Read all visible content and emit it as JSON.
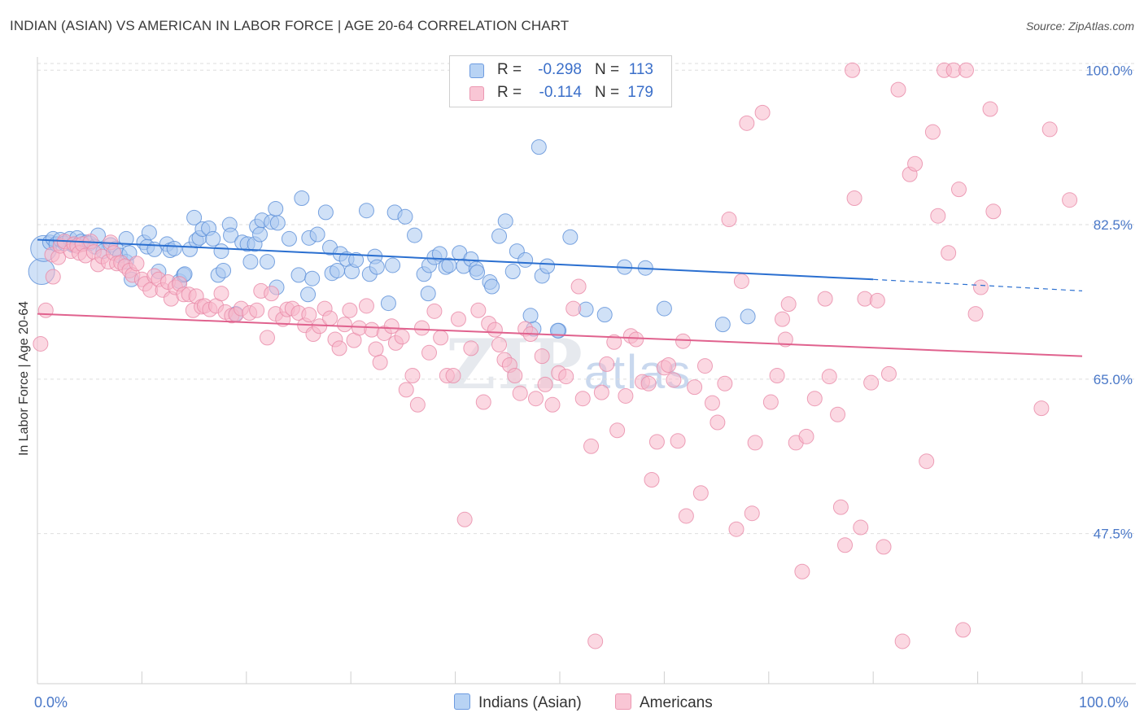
{
  "title": "INDIAN (ASIAN) VS AMERICAN IN LABOR FORCE | AGE 20-64 CORRELATION CHART",
  "source": "Source: ZipAtlas.com",
  "watermark": {
    "big": "ZIP",
    "small": "atlas"
  },
  "legend": {
    "rows": [
      {
        "r_label": "R =",
        "r_value": "-0.298",
        "n_label": "N =",
        "n_value": "113"
      },
      {
        "r_label": "R =",
        "r_value": "-0.114",
        "n_label": "N =",
        "n_value": "179"
      }
    ]
  },
  "bottom_legend": {
    "items": [
      "Indians (Asian)",
      "Americans"
    ]
  },
  "x_axis_labels": {
    "left": "0.0%",
    "right": "100.0%"
  },
  "colors": {
    "blue_fill": "#a9c8f0",
    "blue_stroke": "#5b8fd8",
    "blue_line": "#2a6fd0",
    "pink_fill": "#f7b8cb",
    "pink_stroke": "#e98aa8",
    "pink_line": "#e0628e",
    "grid": "#dedede",
    "tick_text": "#4a78c8"
  },
  "chart_data": {
    "type": "scatter",
    "xlabel": "",
    "ylabel": "In Labor Force | Age 20-64",
    "xlim": [
      0,
      100
    ],
    "ylim": [
      30.5,
      101.5
    ],
    "y_ticks": [
      47.5,
      65.0,
      82.5,
      100.0
    ],
    "y_tick_labels": [
      "47.5%",
      "65.0%",
      "82.5%",
      "100.0%"
    ],
    "grid": true,
    "legend_position": "top-center",
    "series": [
      {
        "name": "Indians (Asian)",
        "n": 113,
        "r": -0.298,
        "trend": {
          "x": [
            0,
            80
          ],
          "y": [
            80.8,
            76.3
          ],
          "dashed_to": [
            100,
            75.0
          ]
        },
        "points": [
          [
            0.4,
            77.2
          ],
          [
            0.6,
            79.8
          ],
          [
            1.2,
            80.5
          ],
          [
            1.5,
            80.9
          ],
          [
            1.8,
            80.3
          ],
          [
            2.2,
            80.8
          ],
          [
            2.6,
            80.4
          ],
          [
            3.1,
            80.9
          ],
          [
            3.4,
            80.2
          ],
          [
            3.8,
            81.0
          ],
          [
            4.2,
            80.6
          ],
          [
            4.7,
            80.5
          ],
          [
            5.0,
            80.4
          ],
          [
            5.5,
            80.0
          ],
          [
            5.8,
            81.3
          ],
          [
            6.3,
            79.5
          ],
          [
            7.0,
            80.2
          ],
          [
            7.5,
            79.8
          ],
          [
            7.9,
            79.0
          ],
          [
            8.5,
            78.3
          ],
          [
            8.5,
            80.9
          ],
          [
            8.8,
            79.3
          ],
          [
            10.2,
            80.5
          ],
          [
            10.5,
            80.0
          ],
          [
            10.7,
            81.6
          ],
          [
            11.2,
            79.7
          ],
          [
            11.6,
            77.2
          ],
          [
            12.4,
            80.3
          ],
          [
            12.7,
            79.6
          ],
          [
            13.1,
            79.8
          ],
          [
            13.6,
            76.1
          ],
          [
            14.0,
            76.8
          ],
          [
            14.6,
            79.7
          ],
          [
            15.0,
            83.3
          ],
          [
            15.2,
            80.7
          ],
          [
            15.5,
            81.0
          ],
          [
            15.8,
            82.0
          ],
          [
            16.4,
            82.1
          ],
          [
            16.8,
            80.9
          ],
          [
            17.3,
            76.8
          ],
          [
            17.6,
            79.5
          ],
          [
            17.8,
            77.3
          ],
          [
            18.4,
            82.5
          ],
          [
            18.5,
            81.3
          ],
          [
            19.0,
            72.4
          ],
          [
            19.6,
            80.5
          ],
          [
            20.1,
            80.3
          ],
          [
            20.4,
            78.3
          ],
          [
            20.8,
            80.3
          ],
          [
            21.0,
            82.3
          ],
          [
            21.3,
            81.4
          ],
          [
            21.5,
            83.0
          ],
          [
            22.0,
            78.3
          ],
          [
            22.4,
            82.8
          ],
          [
            22.8,
            84.3
          ],
          [
            23.0,
            82.7
          ],
          [
            24.1,
            80.9
          ],
          [
            25.0,
            76.8
          ],
          [
            25.3,
            85.5
          ],
          [
            26.0,
            81.0
          ],
          [
            26.3,
            76.4
          ],
          [
            26.8,
            81.4
          ],
          [
            27.6,
            83.9
          ],
          [
            28.0,
            79.9
          ],
          [
            28.2,
            77.0
          ],
          [
            28.7,
            77.3
          ],
          [
            29.0,
            79.2
          ],
          [
            29.6,
            78.6
          ],
          [
            30.1,
            77.2
          ],
          [
            30.5,
            78.5
          ],
          [
            31.5,
            84.1
          ],
          [
            31.8,
            76.9
          ],
          [
            32.3,
            78.9
          ],
          [
            32.5,
            77.7
          ],
          [
            34.0,
            77.9
          ],
          [
            34.2,
            83.9
          ],
          [
            35.2,
            83.4
          ],
          [
            36.1,
            81.3
          ],
          [
            37.0,
            76.9
          ],
          [
            37.5,
            77.9
          ],
          [
            38.0,
            78.8
          ],
          [
            38.5,
            79.2
          ],
          [
            39.1,
            77.7
          ],
          [
            39.4,
            77.9
          ],
          [
            40.4,
            79.3
          ],
          [
            40.8,
            77.8
          ],
          [
            41.5,
            78.6
          ],
          [
            42.0,
            77.5
          ],
          [
            42.1,
            77.1
          ],
          [
            43.3,
            76.0
          ],
          [
            43.5,
            75.5
          ],
          [
            44.2,
            81.2
          ],
          [
            44.8,
            82.9
          ],
          [
            45.5,
            77.2
          ],
          [
            45.9,
            79.5
          ],
          [
            46.7,
            78.5
          ],
          [
            47.5,
            70.7
          ],
          [
            48.0,
            91.3
          ],
          [
            48.3,
            76.7
          ],
          [
            48.8,
            77.8
          ],
          [
            49.9,
            70.5
          ],
          [
            49.8,
            70.5
          ],
          [
            51.0,
            81.1
          ],
          [
            54.3,
            72.3
          ],
          [
            56.2,
            77.7
          ],
          [
            58.2,
            77.6
          ],
          [
            68.0,
            72.1
          ],
          [
            9.0,
            76.3
          ],
          [
            14.1,
            76.9
          ],
          [
            22.9,
            75.4
          ],
          [
            25.9,
            74.6
          ],
          [
            33.6,
            73.6
          ],
          [
            37.4,
            74.7
          ],
          [
            47.2,
            72.2
          ],
          [
            52.5,
            72.9
          ],
          [
            60.0,
            73.0
          ],
          [
            65.6,
            71.2
          ]
        ]
      },
      {
        "name": "Americans",
        "n": 179,
        "r": -0.114,
        "trend": {
          "x": [
            0,
            100
          ],
          "y": [
            72.4,
            67.6
          ]
        },
        "points": [
          [
            0.3,
            69.0
          ],
          [
            0.8,
            72.8
          ],
          [
            1.4,
            79.1
          ],
          [
            1.5,
            76.6
          ],
          [
            2.0,
            78.8
          ],
          [
            2.2,
            80.1
          ],
          [
            2.6,
            80.6
          ],
          [
            3.2,
            79.5
          ],
          [
            3.5,
            80.3
          ],
          [
            3.8,
            80.1
          ],
          [
            4.0,
            79.3
          ],
          [
            4.3,
            80.3
          ],
          [
            4.6,
            79.0
          ],
          [
            5.1,
            80.6
          ],
          [
            5.4,
            79.4
          ],
          [
            5.8,
            78.0
          ],
          [
            6.2,
            78.9
          ],
          [
            6.8,
            78.3
          ],
          [
            7.0,
            80.5
          ],
          [
            7.3,
            79.3
          ],
          [
            7.6,
            78.1
          ],
          [
            8.0,
            78.2
          ],
          [
            8.4,
            77.8
          ],
          [
            8.8,
            77.3
          ],
          [
            9.1,
            76.8
          ],
          [
            9.5,
            78.1
          ],
          [
            10.0,
            76.3
          ],
          [
            10.3,
            75.8
          ],
          [
            10.8,
            75.1
          ],
          [
            11.2,
            76.7
          ],
          [
            11.6,
            76.3
          ],
          [
            12.0,
            75.1
          ],
          [
            12.5,
            76.0
          ],
          [
            12.8,
            74.1
          ],
          [
            13.2,
            75.4
          ],
          [
            13.6,
            75.8
          ],
          [
            14.0,
            74.6
          ],
          [
            14.5,
            74.6
          ],
          [
            14.9,
            72.8
          ],
          [
            15.2,
            74.4
          ],
          [
            15.7,
            73.2
          ],
          [
            16.0,
            73.3
          ],
          [
            16.5,
            72.9
          ],
          [
            17.1,
            73.3
          ],
          [
            17.6,
            74.7
          ],
          [
            18.0,
            72.6
          ],
          [
            18.6,
            72.2
          ],
          [
            19.0,
            72.3
          ],
          [
            19.5,
            73.0
          ],
          [
            20.3,
            72.5
          ],
          [
            21.0,
            72.8
          ],
          [
            21.4,
            75.0
          ],
          [
            22.0,
            69.7
          ],
          [
            22.4,
            74.7
          ],
          [
            22.8,
            72.4
          ],
          [
            23.5,
            71.8
          ],
          [
            23.9,
            72.9
          ],
          [
            24.4,
            73.0
          ],
          [
            25.0,
            72.5
          ],
          [
            25.6,
            71.1
          ],
          [
            26.0,
            72.3
          ],
          [
            26.4,
            70.1
          ],
          [
            27.0,
            71.0
          ],
          [
            27.5,
            73.0
          ],
          [
            28.0,
            71.9
          ],
          [
            28.5,
            69.5
          ],
          [
            28.9,
            68.5
          ],
          [
            29.4,
            71.2
          ],
          [
            29.9,
            72.8
          ],
          [
            30.3,
            69.4
          ],
          [
            30.8,
            70.8
          ],
          [
            31.5,
            73.3
          ],
          [
            32.0,
            70.6
          ],
          [
            32.4,
            68.4
          ],
          [
            32.8,
            66.9
          ],
          [
            33.2,
            70.2
          ],
          [
            33.9,
            71.0
          ],
          [
            34.3,
            69.1
          ],
          [
            34.9,
            69.8
          ],
          [
            35.3,
            63.8
          ],
          [
            35.9,
            65.4
          ],
          [
            36.4,
            62.1
          ],
          [
            36.8,
            70.8
          ],
          [
            37.5,
            68.0
          ],
          [
            38.0,
            72.7
          ],
          [
            38.6,
            69.7
          ],
          [
            39.2,
            65.4
          ],
          [
            39.8,
            65.4
          ],
          [
            40.3,
            71.8
          ],
          [
            40.9,
            49.1
          ],
          [
            41.5,
            68.5
          ],
          [
            42.2,
            72.8
          ],
          [
            42.7,
            62.4
          ],
          [
            43.2,
            71.3
          ],
          [
            43.8,
            70.6
          ],
          [
            44.2,
            68.9
          ],
          [
            44.7,
            67.2
          ],
          [
            45.2,
            66.6
          ],
          [
            45.7,
            65.4
          ],
          [
            46.2,
            63.4
          ],
          [
            46.7,
            70.7
          ],
          [
            47.2,
            70.1
          ],
          [
            47.7,
            62.8
          ],
          [
            48.3,
            67.6
          ],
          [
            48.6,
            64.4
          ],
          [
            49.3,
            62.1
          ],
          [
            49.9,
            65.7
          ],
          [
            50.6,
            65.3
          ],
          [
            51.3,
            73.0
          ],
          [
            51.8,
            75.5
          ],
          [
            52.2,
            62.8
          ],
          [
            53.0,
            57.4
          ],
          [
            53.4,
            35.3
          ],
          [
            54.0,
            63.5
          ],
          [
            54.5,
            66.7
          ],
          [
            55.2,
            69.2
          ],
          [
            55.5,
            59.2
          ],
          [
            56.3,
            63.1
          ],
          [
            56.8,
            69.9
          ],
          [
            57.3,
            69.5
          ],
          [
            57.9,
            64.7
          ],
          [
            58.5,
            64.5
          ],
          [
            58.8,
            53.6
          ],
          [
            59.3,
            57.9
          ],
          [
            60.0,
            66.3
          ],
          [
            60.4,
            66.6
          ],
          [
            60.9,
            64.9
          ],
          [
            61.3,
            58.0
          ],
          [
            61.8,
            69.3
          ],
          [
            62.1,
            49.5
          ],
          [
            62.9,
            64.1
          ],
          [
            63.5,
            52.1
          ],
          [
            63.9,
            66.5
          ],
          [
            64.6,
            62.3
          ],
          [
            65.1,
            60.1
          ],
          [
            65.8,
            64.5
          ],
          [
            66.2,
            83.1
          ],
          [
            66.9,
            48.0
          ],
          [
            67.4,
            76.1
          ],
          [
            67.9,
            94.0
          ],
          [
            68.4,
            49.8
          ],
          [
            68.7,
            57.8
          ],
          [
            69.4,
            95.2
          ],
          [
            70.2,
            62.4
          ],
          [
            70.8,
            65.4
          ],
          [
            71.3,
            71.8
          ],
          [
            71.6,
            69.5
          ],
          [
            71.9,
            73.5
          ],
          [
            72.6,
            57.8
          ],
          [
            73.2,
            43.2
          ],
          [
            73.6,
            58.5
          ],
          [
            74.4,
            62.8
          ],
          [
            75.4,
            74.1
          ],
          [
            75.8,
            65.3
          ],
          [
            76.6,
            61.0
          ],
          [
            76.9,
            50.5
          ],
          [
            77.3,
            46.2
          ],
          [
            78.0,
            100.0
          ],
          [
            78.2,
            85.5
          ],
          [
            78.8,
            48.2
          ],
          [
            79.2,
            74.1
          ],
          [
            79.8,
            64.6
          ],
          [
            80.4,
            73.9
          ],
          [
            81.0,
            46.0
          ],
          [
            81.5,
            65.6
          ],
          [
            82.4,
            97.8
          ],
          [
            82.8,
            35.3
          ],
          [
            83.5,
            88.2
          ],
          [
            84.0,
            89.4
          ],
          [
            85.1,
            55.7
          ],
          [
            85.7,
            93.0
          ],
          [
            86.2,
            83.5
          ],
          [
            86.8,
            100.0
          ],
          [
            87.2,
            79.3
          ],
          [
            87.7,
            100.0
          ],
          [
            88.2,
            86.5
          ],
          [
            88.6,
            36.6
          ],
          [
            88.9,
            100.0
          ],
          [
            89.8,
            72.4
          ],
          [
            90.3,
            75.4
          ],
          [
            91.2,
            95.6
          ],
          [
            91.5,
            84.0
          ],
          [
            96.1,
            61.7
          ],
          [
            96.9,
            93.3
          ],
          [
            98.8,
            85.3
          ]
        ]
      }
    ]
  }
}
